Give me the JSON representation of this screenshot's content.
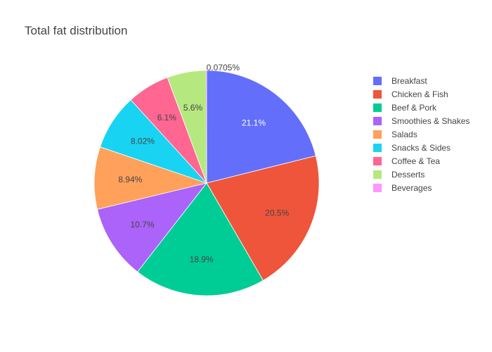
{
  "chart_data": {
    "type": "pie",
    "title": "Total fat distribution",
    "legend_position": "right",
    "slices": [
      {
        "label": "Breakfast",
        "value": 21.1,
        "display": "21.1%",
        "color": "#636efa",
        "label_color": "#ffffff"
      },
      {
        "label": "Chicken & Fish",
        "value": 20.5,
        "display": "20.5%",
        "color": "#ef553b",
        "label_color": "#444444"
      },
      {
        "label": "Beef & Pork",
        "value": 18.9,
        "display": "18.9%",
        "color": "#00cc96",
        "label_color": "#444444"
      },
      {
        "label": "Smoothies & Shakes",
        "value": 10.7,
        "display": "10.7%",
        "color": "#ab63fa",
        "label_color": "#444444"
      },
      {
        "label": "Salads",
        "value": 8.94,
        "display": "8.94%",
        "color": "#ffa15a",
        "label_color": "#444444"
      },
      {
        "label": "Snacks & Sides",
        "value": 8.02,
        "display": "8.02%",
        "color": "#19d3f3",
        "label_color": "#444444"
      },
      {
        "label": "Coffee & Tea",
        "value": 6.1,
        "display": "6.1%",
        "color": "#ff6692",
        "label_color": "#444444"
      },
      {
        "label": "Desserts",
        "value": 5.6,
        "display": "5.6%",
        "color": "#b6e880",
        "label_color": "#444444"
      },
      {
        "label": "Beverages",
        "value": 0.0705,
        "display": "0.0705%",
        "color": "#ff97ff",
        "label_color": "#444444",
        "label_outside": true
      }
    ]
  }
}
